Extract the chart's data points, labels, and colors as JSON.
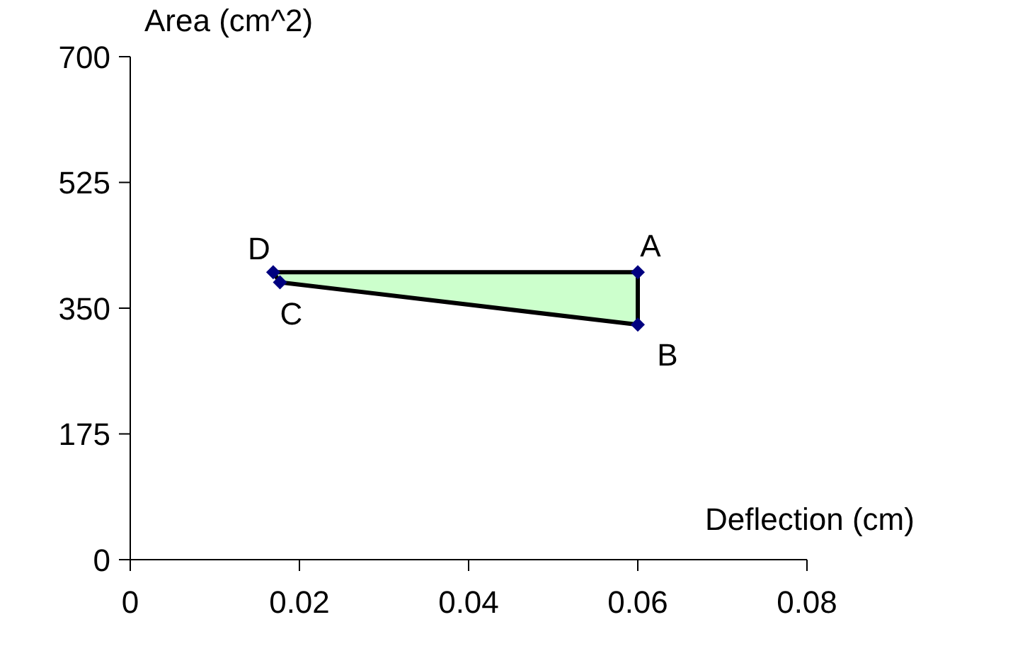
{
  "chart_data": {
    "type": "area",
    "xlabel": "Deflection (cm)",
    "ylabel": "Area (cm^2)",
    "xlim": [
      0,
      0.08
    ],
    "xticks": [
      0,
      0.02,
      0.04,
      0.06,
      0.08
    ],
    "ylim": [
      0,
      700
    ],
    "yticks": [
      0,
      175,
      350,
      525,
      700
    ],
    "marker": "diamond",
    "line_style": "solid",
    "series": [
      {
        "color": "#ccffcc",
        "x": [
          0.06,
          0.06,
          0.0177,
          0.0169
        ],
        "values": [
          400,
          327,
          386,
          400
        ]
      }
    ],
    "annotations": [
      {
        "text": "A",
        "x": 0.06,
        "y": 400
      },
      {
        "text": "B",
        "x": 0.06,
        "y": 327
      },
      {
        "text": "C",
        "x": 0.0177,
        "y": 386
      },
      {
        "text": "D",
        "x": 0.0169,
        "y": 400
      }
    ]
  }
}
